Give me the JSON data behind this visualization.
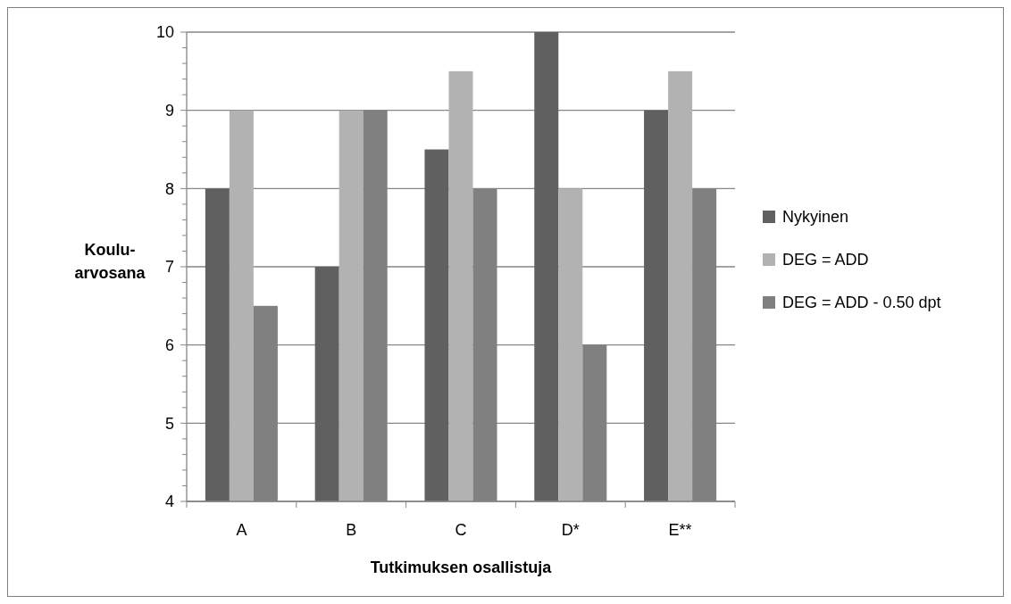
{
  "chart_data": {
    "type": "bar",
    "xlabel": "Tutkimuksen osallistuja",
    "ylabel": "Koulu-\narvosana",
    "categories": [
      "A",
      "B",
      "C",
      "D*",
      "E**"
    ],
    "series": [
      {
        "name": "Nykyinen",
        "color": "#606060",
        "values": [
          8,
          7,
          8.5,
          10,
          9
        ]
      },
      {
        "name": "DEG = ADD",
        "color": "#b2b2b2",
        "values": [
          9,
          9,
          9.5,
          8,
          9.5
        ]
      },
      {
        "name": "DEG = ADD - 0.50 dpt",
        "color": "#808080",
        "values": [
          6.5,
          9,
          8,
          6,
          8
        ]
      }
    ],
    "ylim": [
      4,
      10
    ],
    "yticks": [
      4,
      {
        "value": 4.2,
        "label": null
      },
      {
        "value": 4.4,
        "label": null
      },
      {
        "value": 4.6,
        "label": null
      },
      {
        "value": 4.8,
        "label": null
      },
      5,
      {
        "value": 5.2,
        "label": null
      },
      {
        "value": 5.4,
        "label": null
      },
      {
        "value": 5.6,
        "label": null
      },
      {
        "value": 5.8,
        "label": null
      },
      6,
      {
        "value": 6.2,
        "label": null
      },
      {
        "value": 6.4,
        "label": null
      },
      {
        "value": 6.6,
        "label": null
      },
      {
        "value": 6.8,
        "label": null
      },
      7,
      {
        "value": 7.2,
        "label": null
      },
      {
        "value": 7.4,
        "label": null
      },
      {
        "value": 7.6,
        "label": null
      },
      {
        "value": 7.8,
        "label": null
      },
      8,
      {
        "value": 8.2,
        "label": null
      },
      {
        "value": 8.4,
        "label": null
      },
      {
        "value": 8.6,
        "label": null
      },
      {
        "value": 8.8,
        "label": null
      },
      9,
      {
        "value": 9.2,
        "label": null
      },
      {
        "value": 9.4,
        "label": null
      },
      {
        "value": 9.6,
        "label": null
      },
      {
        "value": 9.8,
        "label": null
      },
      10
    ],
    "grid": "y",
    "legend": "right"
  }
}
